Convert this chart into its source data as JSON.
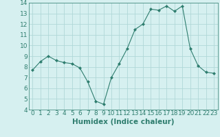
{
  "x": [
    0,
    1,
    2,
    3,
    4,
    5,
    6,
    7,
    8,
    9,
    10,
    11,
    12,
    13,
    14,
    15,
    16,
    17,
    18,
    19,
    20,
    21,
    22,
    23
  ],
  "y": [
    7.7,
    8.5,
    9.0,
    8.6,
    8.4,
    8.3,
    7.9,
    6.6,
    4.8,
    4.5,
    7.0,
    8.3,
    9.7,
    11.5,
    12.0,
    13.4,
    13.3,
    13.7,
    13.2,
    13.7,
    9.7,
    8.1,
    7.5,
    7.4
  ],
  "line_color": "#2e7d6e",
  "marker": "D",
  "marker_size": 2,
  "bg_color": "#d6f0f0",
  "grid_color": "#b0d8d8",
  "title": "",
  "xlabel": "Humidex (Indice chaleur)",
  "ylabel": "",
  "xlim": [
    -0.5,
    23.5
  ],
  "ylim": [
    4,
    14
  ],
  "xticks": [
    0,
    1,
    2,
    3,
    4,
    5,
    6,
    7,
    8,
    9,
    10,
    11,
    12,
    13,
    14,
    15,
    16,
    17,
    18,
    19,
    20,
    21,
    22,
    23
  ],
  "yticks": [
    4,
    5,
    6,
    7,
    8,
    9,
    10,
    11,
    12,
    13,
    14
  ],
  "tick_color": "#2e7d6e",
  "label_fontsize": 6.5,
  "xlabel_fontsize": 7.5
}
